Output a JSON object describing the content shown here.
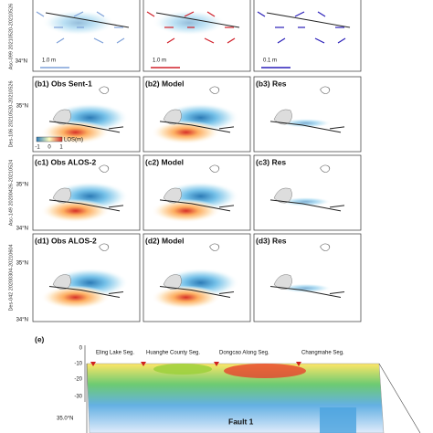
{
  "top_row": {
    "side_label": "Asc-099 20210520-20210526",
    "lat_label": "34°N",
    "scale_bars": [
      "1.0 m",
      "1.0 m",
      "0.1 m"
    ]
  },
  "rows": [
    {
      "side_label": "Des-106 20210520-20210526",
      "lat_labels": [
        "35°N"
      ],
      "panels": [
        "(b1) Obs Sent-1",
        "(b2) Model",
        "(b3) Res"
      ]
    },
    {
      "side_label": "Asc-149 20200426-20210524",
      "lat_labels": [
        "35°N",
        "34°N"
      ],
      "panels": [
        "(c1) Obs ALOS-2",
        "(c2) Model",
        "(c3) Res"
      ]
    },
    {
      "side_label": "Des-042 20200304-20210604",
      "lat_labels": [
        "35°N",
        "34°N"
      ],
      "panels": [
        "(d1) Obs ALOS-2",
        "(d2) Model",
        "(d3) Res"
      ]
    }
  ],
  "legend": {
    "title": "LOS(m)",
    "labels": [
      "-1",
      "0",
      "1"
    ]
  },
  "fault_panel": {
    "label": "(e)",
    "segments": [
      "Eling Lake Seg.",
      "Huanghe County Seg.",
      "Dongcao Along Seg.",
      "Changmahe Seg."
    ],
    "depth_ticks": [
      "0",
      "-10",
      "-20",
      "-30"
    ],
    "lat_label": "35.0°N",
    "fault_name": "Fault 1"
  }
}
